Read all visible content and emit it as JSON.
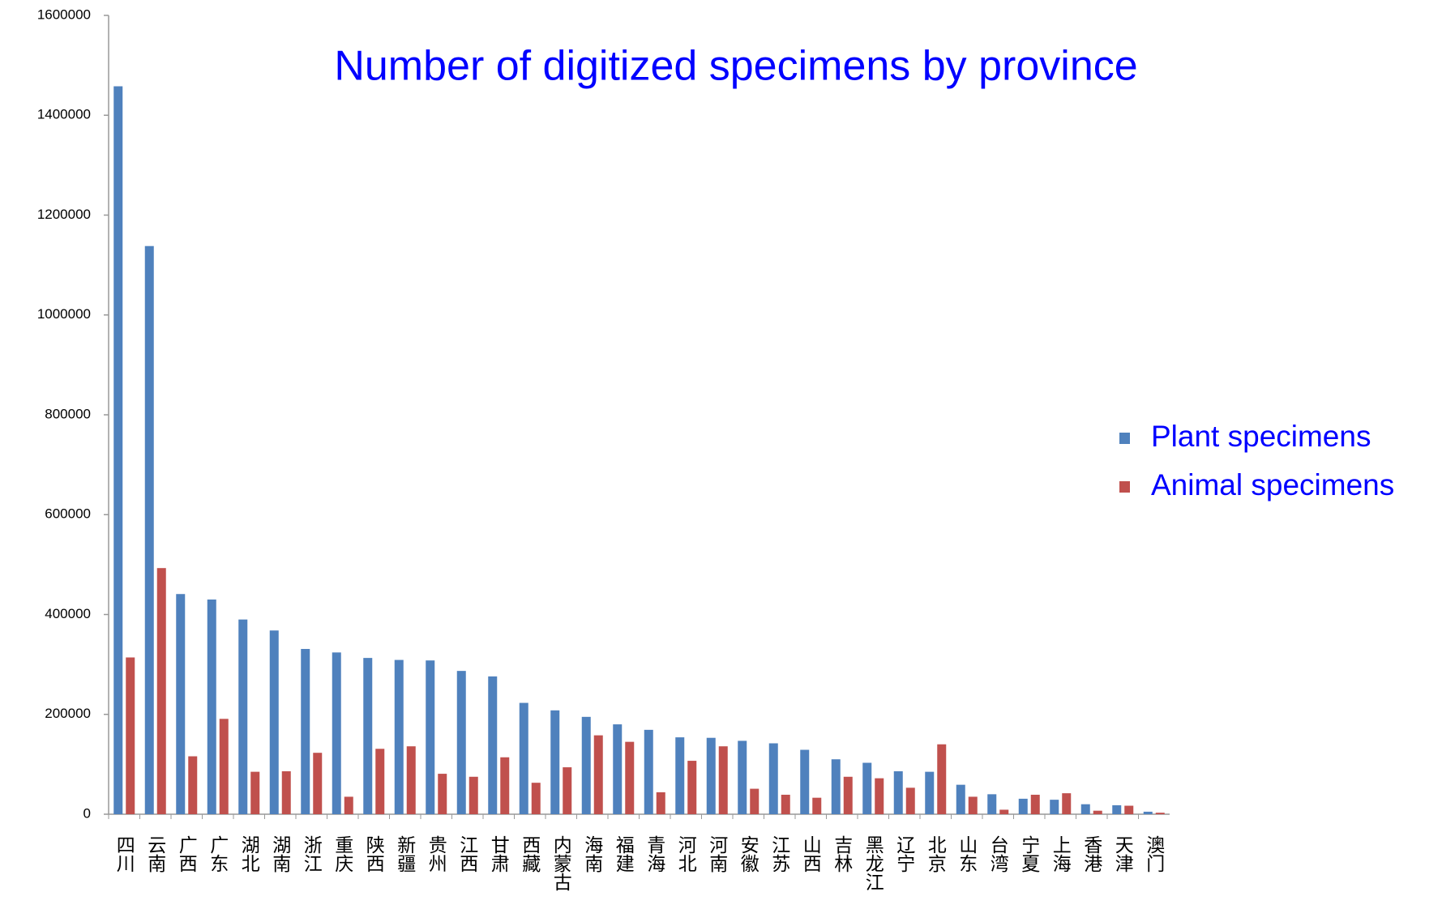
{
  "chart_data": {
    "type": "bar",
    "title": "Number of digitized specimens by province",
    "categories": [
      "四川",
      "云南",
      "广西",
      "广东",
      "湖北",
      "湖南",
      "浙江",
      "重庆",
      "陕西",
      "新疆",
      "贵州",
      "江西",
      "甘肃",
      "西藏",
      "内蒙古",
      "海南",
      "福建",
      "青海",
      "河北",
      "河南",
      "安徽",
      "江苏",
      "山西",
      "吉林",
      "黑龙江",
      "辽宁",
      "北京",
      "山东",
      "台湾",
      "宁夏",
      "上海",
      "香港",
      "天津",
      "澳门"
    ],
    "series": [
      {
        "name": "Plant specimens",
        "color": "#4f81bd",
        "values": [
          1458000,
          1138000,
          441000,
          430000,
          390000,
          368000,
          331000,
          324000,
          313000,
          309000,
          308000,
          287000,
          276000,
          223000,
          208000,
          195000,
          180000,
          169000,
          154000,
          153000,
          147000,
          142000,
          129000,
          110000,
          103000,
          86000,
          85000,
          59000,
          40000,
          31000,
          29000,
          20000,
          18000,
          5000
        ]
      },
      {
        "name": "Animal specimens",
        "color": "#c0504d",
        "values": [
          314000,
          493000,
          116000,
          191000,
          85000,
          86000,
          123000,
          35000,
          131000,
          136000,
          81000,
          75000,
          114000,
          63000,
          94000,
          158000,
          145000,
          44000,
          107000,
          136000,
          51000,
          39000,
          33000,
          75000,
          72000,
          53000,
          140000,
          35000,
          9000,
          39000,
          42000,
          7000,
          17000,
          3000
        ]
      }
    ],
    "ylim": [
      0,
      1600000
    ],
    "yticks": [
      0,
      200000,
      400000,
      600000,
      800000,
      1000000,
      1200000,
      1400000,
      1600000
    ],
    "legend": "right"
  }
}
